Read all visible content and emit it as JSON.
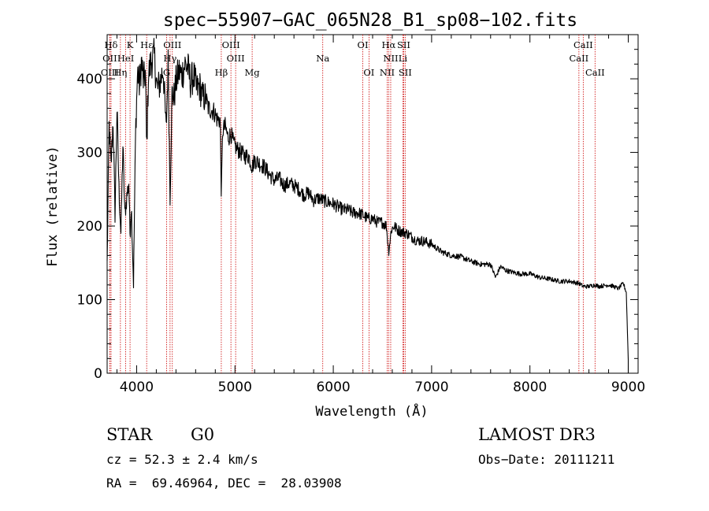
{
  "chart_data": {
    "type": "line",
    "title": "spec−55907−GAC_065N28_B1_sp08−102.fits",
    "xlabel": "Wavelength (Å)",
    "ylabel": "Flux (relative)",
    "xlim": [
      3700,
      9100
    ],
    "ylim": [
      0,
      460
    ],
    "xticks": [
      "4000",
      "5000",
      "6000",
      "7000",
      "8000",
      "9000"
    ],
    "xtick_values": [
      4000,
      5000,
      6000,
      7000,
      8000,
      9000
    ],
    "yticks": [
      "0",
      "100",
      "200",
      "300",
      "400"
    ],
    "ytick_values": [
      0,
      100,
      200,
      300,
      400
    ],
    "series": [
      {
        "name": "flux",
        "x": [
          3700,
          3720,
          3740,
          3760,
          3780,
          3800,
          3820,
          3840,
          3860,
          3880,
          3900,
          3920,
          3933,
          3945,
          3968,
          3990,
          4010,
          4030,
          4050,
          4070,
          4090,
          4102,
          4120,
          4150,
          4180,
          4210,
          4240,
          4270,
          4300,
          4320,
          4340,
          4360,
          4380,
          4400,
          4430,
          4460,
          4490,
          4520,
          4550,
          4580,
          4610,
          4640,
          4670,
          4700,
          4730,
          4760,
          4790,
          4820,
          4850,
          4861,
          4875,
          4900,
          4930,
          4960,
          4990,
          5020,
          5060,
          5100,
          5140,
          5175,
          5200,
          5250,
          5300,
          5350,
          5400,
          5450,
          5500,
          5550,
          5600,
          5650,
          5700,
          5750,
          5800,
          5850,
          5893,
          5950,
          6000,
          6050,
          6100,
          6150,
          6200,
          6250,
          6300,
          6350,
          6400,
          6450,
          6500,
          6540,
          6563,
          6590,
          6620,
          6650,
          6700,
          6750,
          6800,
          6850,
          6900,
          6950,
          7000,
          7100,
          7200,
          7300,
          7400,
          7500,
          7600,
          7650,
          7700,
          7750,
          7800,
          7900,
          8000,
          8100,
          8200,
          8300,
          8400,
          8500,
          8542,
          8600,
          8662,
          8700,
          8800,
          8850,
          8900,
          8950,
          8980,
          9000
        ],
        "values": [
          150,
          335,
          280,
          345,
          215,
          360,
          250,
          190,
          310,
          215,
          240,
          260,
          185,
          230,
          120,
          330,
          410,
          390,
          425,
          395,
          410,
          300,
          405,
          425,
          430,
          385,
          395,
          415,
          330,
          420,
          240,
          380,
          375,
          395,
          410,
          405,
          420,
          415,
          395,
          405,
          385,
          390,
          375,
          375,
          360,
          358,
          355,
          345,
          345,
          240,
          330,
          335,
          320,
          325,
          310,
          305,
          300,
          295,
          295,
          280,
          290,
          285,
          280,
          270,
          262,
          265,
          255,
          258,
          255,
          250,
          242,
          245,
          235,
          238,
          235,
          232,
          230,
          226,
          222,
          222,
          218,
          218,
          215,
          210,
          210,
          205,
          205,
          200,
          165,
          195,
          200,
          195,
          192,
          190,
          185,
          180,
          180,
          178,
          175,
          165,
          160,
          158,
          152,
          148,
          148,
          130,
          145,
          140,
          138,
          135,
          135,
          130,
          128,
          125,
          125,
          122,
          118,
          118,
          120,
          118,
          120,
          118,
          115,
          122,
          110,
          18
        ]
      }
    ],
    "emission_lines": [
      {
        "label": "Hδ",
        "wavelength": 3740,
        "row": 1
      },
      {
        "label": "K",
        "wavelength": 3933,
        "row": 1
      },
      {
        "label": "Hε",
        "wavelength": 4102,
        "row": 1
      },
      {
        "label": "OIII",
        "wavelength": 4363,
        "row": 1
      },
      {
        "label": "OIII",
        "wavelength": 4959,
        "row": 1
      },
      {
        "label": "OI",
        "wavelength": 6300,
        "row": 1
      },
      {
        "label": "Hα",
        "wavelength": 6563,
        "row": 1
      },
      {
        "label": "SII",
        "wavelength": 6716,
        "row": 1
      },
      {
        "label": "CaII",
        "wavelength": 8542,
        "row": 1
      },
      {
        "label": "OII",
        "wavelength": 3727,
        "row": 2
      },
      {
        "label": "HeI",
        "wavelength": 3889,
        "row": 2
      },
      {
        "label": "Hγ",
        "wavelength": 4340,
        "row": 2
      },
      {
        "label": "OIII",
        "wavelength": 5007,
        "row": 2
      },
      {
        "label": "Na",
        "wavelength": 5893,
        "row": 2
      },
      {
        "label": "NII",
        "wavelength": 6584,
        "row": 2
      },
      {
        "label": "Li",
        "wavelength": 6708,
        "row": 2
      },
      {
        "label": "CaII",
        "wavelength": 8498,
        "row": 2
      },
      {
        "label": "OIII",
        "wavelength": 3727,
        "row": 3
      },
      {
        "label": "Hη",
        "wavelength": 3835,
        "row": 3
      },
      {
        "label": "G",
        "wavelength": 4305,
        "row": 3
      },
      {
        "label": "Hβ",
        "wavelength": 4861,
        "row": 3
      },
      {
        "label": "Mg",
        "wavelength": 5175,
        "row": 3
      },
      {
        "label": "OI",
        "wavelength": 6363,
        "row": 3
      },
      {
        "label": "NII",
        "wavelength": 6548,
        "row": 3
      },
      {
        "label": "SII",
        "wavelength": 6731,
        "row": 3
      },
      {
        "label": "CaII",
        "wavelength": 8662,
        "row": 3
      }
    ],
    "colors": {
      "spectrum": "#000000",
      "line_markers": "#cc0000",
      "axes": "#000000"
    }
  },
  "info": {
    "object_class": "STAR",
    "subclass": "G0",
    "survey": "LAMOST DR3",
    "cz": "cz = 52.3 ± 2.4 km/s",
    "obs_date": "Obs−Date: 20111211",
    "coords": "RA =  69.46964, DEC =  28.03908"
  }
}
